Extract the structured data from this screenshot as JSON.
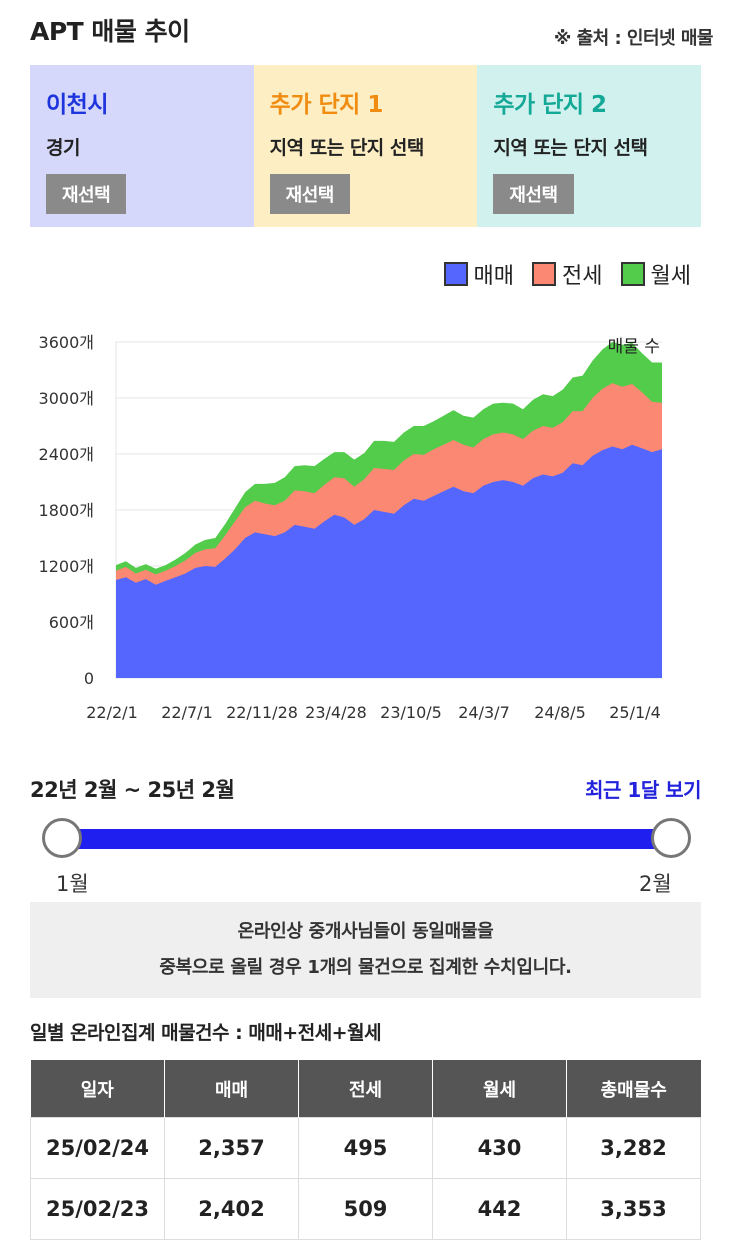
{
  "header": {
    "title": "APT 매물 추이",
    "source": "※ 출처 : 인터넷 매물"
  },
  "cards": [
    {
      "title": "이천시",
      "sub": "경기",
      "button": "재선택",
      "bg": "#d5d8fb",
      "titleColor": "#1e34dd"
    },
    {
      "title": "추가 단지 1",
      "sub": "지역 또는 단지 선택",
      "button": "재선택",
      "bg": "#fdeec4",
      "titleColor": "#f08c10"
    },
    {
      "title": "추가 단지 2",
      "sub": "지역 또는 단지 선택",
      "button": "재선택",
      "bg": "#d0f1ee",
      "titleColor": "#14a896"
    }
  ],
  "legend": [
    {
      "name": "매매",
      "color": "#5566ff"
    },
    {
      "name": "전세",
      "color": "#fa8873"
    },
    {
      "name": "월세",
      "color": "#52cc4a"
    }
  ],
  "chart_data": {
    "type": "area",
    "stacked": true,
    "annotation": "매물 수",
    "ylim": [
      0,
      3600
    ],
    "yticks": [
      "0",
      "600개",
      "1200개",
      "1800개",
      "2400개",
      "3000개",
      "3600개"
    ],
    "xticks": [
      "22/2/1",
      "22/7/1",
      "22/11/28",
      "23/4/28",
      "23/10/5",
      "24/3/7",
      "24/8/5",
      "25/1/4"
    ],
    "grid": true,
    "series": [
      {
        "name": "매매",
        "color": "#5566ff",
        "values": [
          1050,
          1080,
          1020,
          1060,
          1000,
          1040,
          1080,
          1120,
          1180,
          1200,
          1190,
          1280,
          1380,
          1500,
          1560,
          1540,
          1520,
          1560,
          1640,
          1620,
          1600,
          1680,
          1750,
          1720,
          1640,
          1700,
          1800,
          1780,
          1760,
          1850,
          1920,
          1900,
          1950,
          2000,
          2050,
          2000,
          1980,
          2060,
          2100,
          2120,
          2100,
          2060,
          2140,
          2180,
          2160,
          2200,
          2300,
          2280,
          2380,
          2440,
          2480,
          2450,
          2500,
          2460,
          2420,
          2450
        ]
      },
      {
        "name": "전세",
        "color": "#fa8873",
        "values": [
          100,
          110,
          100,
          100,
          110,
          110,
          120,
          140,
          160,
          180,
          200,
          250,
          300,
          330,
          340,
          330,
          330,
          340,
          370,
          380,
          380,
          390,
          400,
          420,
          410,
          430,
          450,
          460,
          470,
          480,
          480,
          490,
          500,
          500,
          500,
          500,
          490,
          500,
          510,
          510,
          510,
          500,
          510,
          520,
          520,
          540,
          560,
          580,
          620,
          660,
          680,
          670,
          650,
          600,
          540,
          500
        ]
      },
      {
        "name": "월세",
        "color": "#52cc4a",
        "values": [
          60,
          60,
          60,
          60,
          60,
          60,
          70,
          80,
          90,
          100,
          110,
          120,
          140,
          160,
          180,
          210,
          240,
          250,
          260,
          280,
          290,
          280,
          270,
          280,
          290,
          280,
          290,
          300,
          300,
          300,
          300,
          310,
          300,
          310,
          320,
          310,
          320,
          320,
          330,
          320,
          330,
          320,
          330,
          340,
          340,
          350,
          360,
          380,
          400,
          420,
          440,
          450,
          440,
          420,
          420,
          430
        ]
      }
    ]
  },
  "range": {
    "label": "22년 2월 ~ 25년 2월",
    "recent": "최근 1달 보기",
    "min": "1월",
    "max": "2월"
  },
  "notice": {
    "line1": "온라인상 중개사님들이 동일매물을",
    "line2": "중복으로 올릴 경우 1개의 물건으로 집계한 수치입니다."
  },
  "table": {
    "title": "일별 온라인집계 매물건수 : 매매+전세+월세",
    "headers": [
      "일자",
      "매매",
      "전세",
      "월세",
      "총매물수"
    ],
    "rows": [
      [
        "25/02/24",
        "2,357",
        "495",
        "430",
        "3,282"
      ],
      [
        "25/02/23",
        "2,402",
        "509",
        "442",
        "3,353"
      ]
    ]
  }
}
